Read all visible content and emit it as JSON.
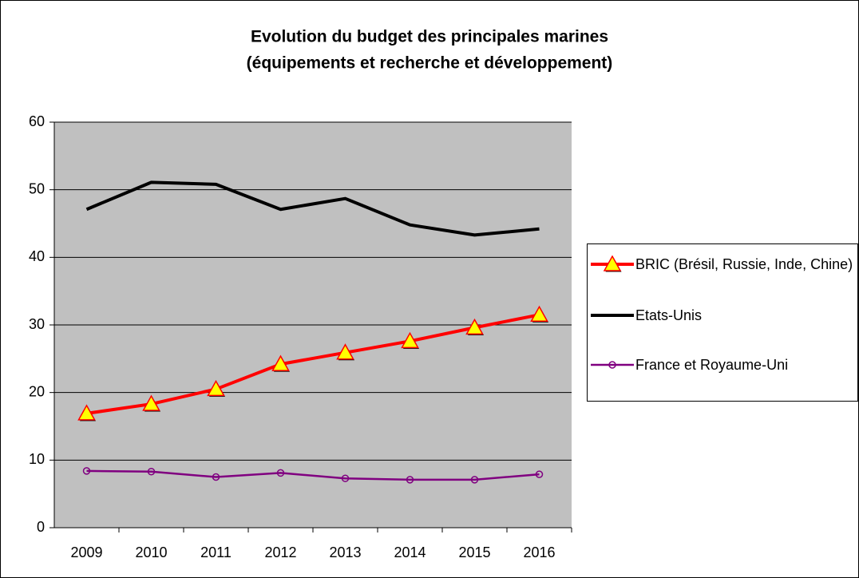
{
  "chart_data": {
    "type": "line",
    "title": [
      "Evolution du budget des principales marines",
      "(équipements et recherche et développement)"
    ],
    "categories": [
      "2009",
      "2010",
      "2011",
      "2012",
      "2013",
      "2014",
      "2015",
      "2016"
    ],
    "series": [
      {
        "name": "BRIC (Brésil, Russie, Inde, Chine)",
        "color": "#ff0000",
        "marker": "triangle",
        "marker_color": "#ffff00",
        "values": [
          16.9,
          18.3,
          20.5,
          24.2,
          25.9,
          27.6,
          29.6,
          31.5
        ]
      },
      {
        "name": "Etats-Unis",
        "color": "#000000",
        "marker": "none",
        "values": [
          47.1,
          51.1,
          50.8,
          47.1,
          48.7,
          44.8,
          43.3,
          44.2
        ]
      },
      {
        "name": "France et Royaume-Uni",
        "color": "#800080",
        "marker": "circle",
        "values": [
          8.4,
          8.3,
          7.5,
          8.1,
          7.3,
          7.1,
          7.1,
          7.9
        ]
      }
    ],
    "ylim": [
      0,
      60
    ],
    "yticks": [
      0,
      10,
      20,
      30,
      40,
      50,
      60
    ],
    "grid": true,
    "legend": "right",
    "plot_background": "#c0c0c0"
  }
}
